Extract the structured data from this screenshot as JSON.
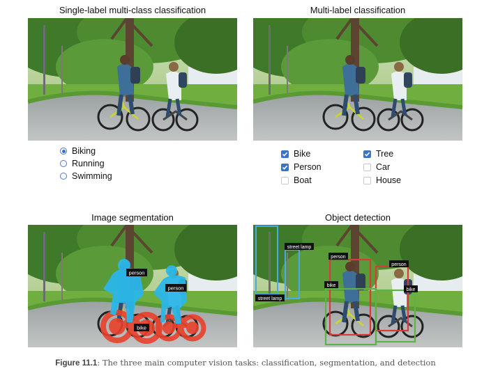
{
  "panels": {
    "single_label": {
      "title": "Single-label multi-class classification",
      "options": [
        {
          "label": "Biking",
          "selected": true
        },
        {
          "label": "Running",
          "selected": false
        },
        {
          "label": "Swimming",
          "selected": false
        }
      ]
    },
    "multi_label": {
      "title": "Multi-label classification",
      "options": [
        {
          "label": "Bike",
          "checked": true
        },
        {
          "label": "Tree",
          "checked": true
        },
        {
          "label": "Person",
          "checked": true
        },
        {
          "label": "Car",
          "checked": false
        },
        {
          "label": "Boat",
          "checked": false
        },
        {
          "label": "House",
          "checked": false
        }
      ]
    },
    "segmentation": {
      "title": "Image segmentation",
      "labels": [
        "person",
        "person",
        "bike"
      ]
    },
    "detection": {
      "title": "Object detection",
      "labels": [
        "street lamp",
        "street lamp",
        "person",
        "person",
        "bike",
        "bike"
      ]
    }
  },
  "caption": {
    "figure": "Figure 11.1",
    "text": ": The three main computer vision tasks: classification, segmentation, and detection"
  },
  "colors": {
    "radio_accent": "#3a6fc9",
    "checkbox_accent": "#3b73c9",
    "segment_person": "#2bb7e8",
    "segment_bike": "#e8412b",
    "box_lamp": "#4aa9e8",
    "box_person": "#d63a3a",
    "box_bike": "#5fb24a"
  }
}
